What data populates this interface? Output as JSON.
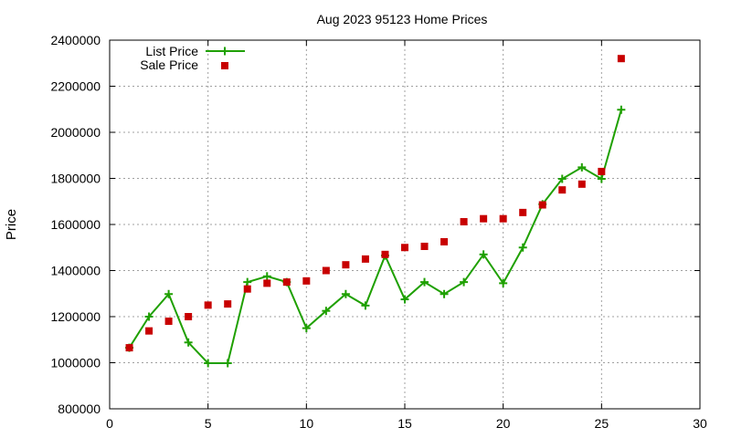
{
  "chart_data": {
    "type": "line",
    "title": "Aug 2023 95123 Home Prices",
    "xlabel": "",
    "ylabel": "Price",
    "xlim": [
      0,
      30
    ],
    "ylim": [
      800000,
      2400000
    ],
    "xticks": [
      0,
      5,
      10,
      15,
      20,
      25,
      30
    ],
    "yticks": [
      800000,
      1000000,
      1200000,
      1400000,
      1600000,
      1800000,
      2000000,
      2200000,
      2400000
    ],
    "grid": true,
    "legend_position": "top-left",
    "series": [
      {
        "name": "List Price",
        "style": "line-with-plus-markers",
        "color": "#1fa000",
        "x": [
          1,
          2,
          3,
          4,
          5,
          6,
          7,
          8,
          9,
          10,
          11,
          12,
          13,
          14,
          15,
          16,
          17,
          18,
          19,
          20,
          21,
          22,
          23,
          24,
          25,
          26
        ],
        "values": [
          1065000,
          1200000,
          1298000,
          1088000,
          998000,
          998000,
          1350000,
          1375000,
          1350000,
          1150000,
          1225000,
          1298000,
          1248000,
          1465000,
          1275000,
          1350000,
          1298000,
          1350000,
          1470000,
          1345000,
          1500000,
          1688000,
          1798000,
          1848000,
          1798000,
          2098000
        ]
      },
      {
        "name": "Sale Price",
        "style": "square-markers",
        "color": "#c80000",
        "x": [
          1,
          2,
          3,
          4,
          5,
          6,
          7,
          8,
          9,
          10,
          11,
          12,
          13,
          14,
          15,
          16,
          17,
          18,
          19,
          20,
          21,
          22,
          23,
          24,
          25,
          26
        ],
        "values": [
          1065000,
          1138000,
          1180000,
          1200000,
          1250000,
          1255000,
          1320000,
          1345000,
          1350000,
          1355000,
          1400000,
          1425000,
          1450000,
          1470000,
          1500000,
          1505000,
          1525000,
          1612000,
          1625000,
          1625000,
          1652000,
          1685000,
          1750000,
          1775000,
          1830000,
          2320000
        ]
      }
    ]
  }
}
